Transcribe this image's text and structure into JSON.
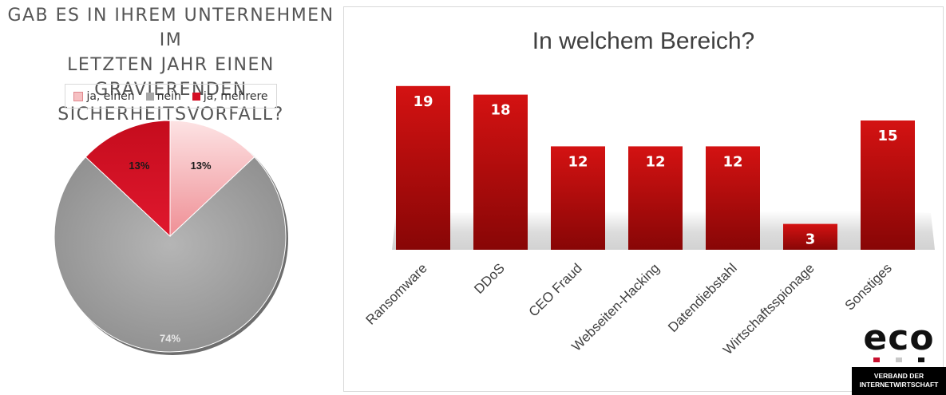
{
  "colors": {
    "ja_einen": "#f6c0c2",
    "nein": "#a6a6a6",
    "ja_mehrere": "#d40f24",
    "bar": "#b80c0c",
    "bar_label": "#ffffff",
    "logo_red": "#c8102e",
    "logo_gray": "#c8c8c8",
    "logo_black": "#111111"
  },
  "chart_data": [
    {
      "type": "pie",
      "title_lines": [
        "GAB ES IN IHREM UNTERNEHMEN IM",
        "LETZTEN JAHR EINEN GRAVIERENDEN",
        "SICHERHEITSVORFALL?"
      ],
      "legend_position": "top",
      "slices": [
        {
          "label": "ja, einen",
          "value": 13,
          "value_label": "13%"
        },
        {
          "label": "nein",
          "value": 74,
          "value_label": "74%"
        },
        {
          "label": "ja, mehrere",
          "value": 13,
          "value_label": "13%"
        }
      ]
    },
    {
      "type": "bar",
      "title": "In welchem Bereich?",
      "categories": [
        "Ransomware",
        "DDoS",
        "CEO Fraud",
        "Webseiten-Hacking",
        "Datendiebstahl",
        "Wirtschaftsspionage",
        "Sonstiges"
      ],
      "values": [
        19,
        18,
        12,
        12,
        12,
        3,
        15
      ],
      "ylim": [
        0,
        20
      ],
      "grid": false
    }
  ],
  "logo": {
    "word": "eco",
    "line1": "VERBAND DER",
    "line2": "INTERNETWIRTSCHAFT"
  }
}
